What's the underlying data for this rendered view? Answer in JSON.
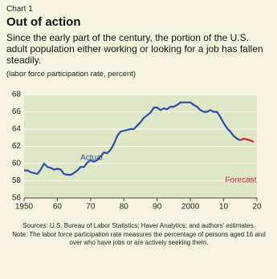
{
  "chart_data": {
    "type": "line",
    "kicker": "Chart 1",
    "title": "Out of action",
    "subtitle": "Since the early part of the century, the portion of the U.S. adult population either working or looking for a job has fallen steadily.",
    "y_label": "(labor force participation rate, percent)",
    "xlim": [
      1950,
      2020
    ],
    "xticks": [
      {
        "value": 1950,
        "label": "1950"
      },
      {
        "value": 1960,
        "label": "60"
      },
      {
        "value": 1970,
        "label": "70"
      },
      {
        "value": 1980,
        "label": "80"
      },
      {
        "value": 1990,
        "label": "90"
      },
      {
        "value": 2000,
        "label": "2000"
      },
      {
        "value": 2010,
        "label": "10"
      },
      {
        "value": 2020,
        "label": "20"
      }
    ],
    "ylim": [
      56,
      68
    ],
    "yticks": [
      56,
      58,
      60,
      62,
      64,
      66,
      68
    ],
    "grid": true,
    "series": [
      {
        "name": "Actual",
        "color": "#2b4ea8",
        "x": [
          1950,
          1951,
          1952,
          1953,
          1954,
          1955,
          1956,
          1957,
          1958,
          1959,
          1960,
          1961,
          1962,
          1963,
          1964,
          1965,
          1966,
          1967,
          1968,
          1969,
          1970,
          1971,
          1972,
          1973,
          1974,
          1975,
          1976,
          1977,
          1978,
          1979,
          1980,
          1981,
          1982,
          1983,
          1984,
          1985,
          1986,
          1987,
          1988,
          1989,
          1990,
          1991,
          1992,
          1993,
          1994,
          1995,
          1996,
          1997,
          1998,
          1999,
          2000,
          2001,
          2002,
          2003,
          2004,
          2005,
          2006,
          2007,
          2008,
          2009,
          2010,
          2011,
          2012,
          2013,
          2014,
          2015
        ],
        "values": [
          59.2,
          59.2,
          59.0,
          58.9,
          58.8,
          59.3,
          60.0,
          59.6,
          59.5,
          59.3,
          59.4,
          59.3,
          58.8,
          58.7,
          58.7,
          58.9,
          59.2,
          59.6,
          59.6,
          60.1,
          60.4,
          60.2,
          60.4,
          60.8,
          61.3,
          61.2,
          61.6,
          62.3,
          63.2,
          63.7,
          63.8,
          63.9,
          64.0,
          64.0,
          64.4,
          64.8,
          65.3,
          65.6,
          65.9,
          66.5,
          66.5,
          66.2,
          66.4,
          66.3,
          66.6,
          66.6,
          66.8,
          67.1,
          67.1,
          67.1,
          67.1,
          66.8,
          66.6,
          66.2,
          66.0,
          66.0,
          66.2,
          66.0,
          66.0,
          65.4,
          64.7,
          64.1,
          63.7,
          63.2,
          62.9,
          62.7
        ]
      },
      {
        "name": "Forecast",
        "color": "#d0202e",
        "x": [
          2015,
          2016,
          2017,
          2018,
          2019
        ],
        "values": [
          62.7,
          62.9,
          62.8,
          62.7,
          62.5
        ]
      }
    ],
    "notes": [
      "Sources: U.S. Bureau of Labor Statistics; Haver Analytics; and authors' estimates.",
      "Note: The labor force participation rate measures the percentage of persons aged 16 and over who have jobs or are actively seeking them."
    ]
  }
}
